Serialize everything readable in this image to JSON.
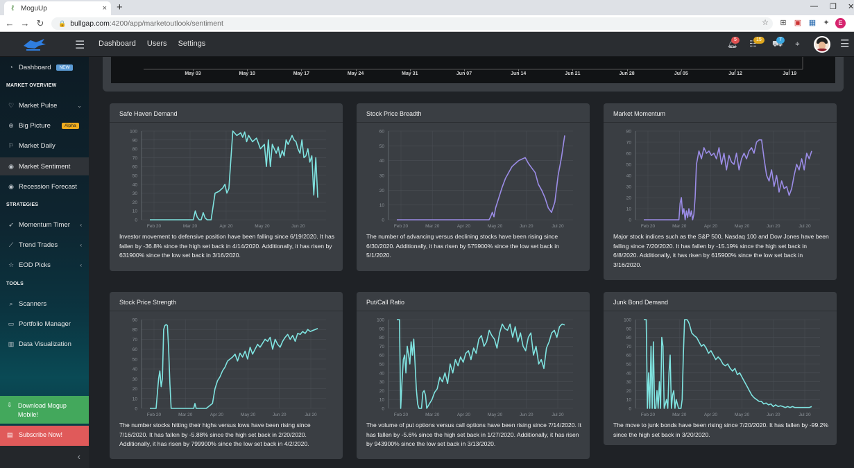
{
  "browser": {
    "tab_title": "MoguUp",
    "tab_close": "×",
    "new_tab": "+",
    "url_host": "bullgap.com",
    "url_path": ":4200/app/marketoutlook/sentiment",
    "profile_letter": "E"
  },
  "header": {
    "nav": [
      "Dashboard",
      "Users",
      "Settings"
    ],
    "badges": {
      "bell": "5",
      "list": "15",
      "cart": "7"
    }
  },
  "sidebar": {
    "items": [
      {
        "label": "Dashboard",
        "icon": "gauge-icon",
        "badge": "NEW",
        "badge_color": "#5b9bd5"
      },
      {
        "label": "Market Pulse",
        "icon": "heart-icon",
        "chevron": "⌄"
      },
      {
        "label": "Big Picture",
        "icon": "crosshair-icon",
        "badge": "Alpha",
        "badge_color": "#f0ad1e"
      },
      {
        "label": "Market Daily",
        "icon": "flag-icon"
      },
      {
        "label": "Market Sentiment",
        "icon": "eye-icon",
        "active": true
      },
      {
        "label": "Recession Forecast",
        "icon": "eye-icon"
      },
      {
        "label": "Momentum Timer",
        "icon": "rocket-icon",
        "chevron": "‹"
      },
      {
        "label": "Trend Trades",
        "icon": "chart-line-icon",
        "chevron": "‹"
      },
      {
        "label": "EOD Picks",
        "icon": "star-icon",
        "chevron": "‹"
      },
      {
        "label": "Scanners",
        "icon": "search-icon"
      },
      {
        "label": "Portfolio Manager",
        "icon": "briefcase-icon"
      },
      {
        "label": "Data Visualization",
        "icon": "bar-chart-icon"
      }
    ],
    "headings": [
      "MARKET OVERVIEW",
      "STRATEGIES",
      "TOOLS"
    ],
    "download": "Download Mogup Mobile!",
    "subscribe": "Subscribe Now!",
    "collapse": "‹"
  },
  "top_chart": {
    "x_labels": [
      "May 03",
      "May 10",
      "May 17",
      "May 24",
      "May 31",
      "Jun 07",
      "Jun 14",
      "Jun 21",
      "Jun 28",
      "Jul 05",
      "Jul 12",
      "Jul 19"
    ]
  },
  "cards": [
    {
      "title": "Safe Haven Demand",
      "description": "Investor movement to defensive position have been falling since 6/19/2020. It has fallen by -36.8% since the high set back in 4/14/2020. Additionally, it has risen by 631900% since the low set back in 3/16/2020."
    },
    {
      "title": "Stock Price Breadth",
      "description": "The number of advancing versus declining stocks have been rising since 6/30/2020. Additionally, it has risen by 575900% since the low set back in 5/1/2020."
    },
    {
      "title": "Market Momentum",
      "description": "Major stock indices such as the S&P 500, Nasdaq 100 and Dow Jones have been falling since 7/20/2020. It has fallen by -15.19% since the high set back in 6/8/2020. Additionally, it has risen by 615900% since the low set back in 3/16/2020."
    },
    {
      "title": "Stock Price Strength",
      "description": "The number stocks hitting their highs versus lows have been rising since 7/16/2020. It has fallen by -5.88% since the high set back in 2/20/2020. Additionally, it has risen by 799900% since the low set back in 4/2/2020."
    },
    {
      "title": "Put/Call Ratio",
      "description": "The volume of put options versus call options have been rising since 7/14/2020. It has fallen by -5.6% since the high set back in 1/27/2020. Additionally, it has risen by 943900% since the low set back in 3/13/2020."
    },
    {
      "title": "Junk Bond Demand",
      "description": "The move to junk bonds have been rising since 7/20/2020. It has fallen by -99.2% since the high set back in 3/20/2020."
    }
  ],
  "chart_data": [
    {
      "type": "line",
      "color": "#7fe3e0",
      "ylim": [
        0,
        100
      ],
      "yticks": [
        0,
        10,
        20,
        30,
        40,
        50,
        60,
        70,
        80,
        90,
        100
      ],
      "xticks": [
        "Feb 20",
        "Mar 20",
        "Apr 20",
        "May 20",
        "Jun 20"
      ],
      "x": [
        0,
        12,
        30,
        36,
        38,
        40,
        42,
        44,
        46,
        48,
        50,
        52,
        54,
        56,
        58,
        60,
        62,
        66,
        70,
        74,
        76,
        78,
        80,
        84,
        88,
        92,
        94,
        96,
        98,
        100,
        104,
        108,
        112,
        116,
        118,
        120,
        122,
        124,
        128,
        130,
        132,
        134,
        136,
        138,
        140,
        144,
        146,
        148,
        150,
        152,
        154,
        156,
        158,
        160,
        162,
        164,
        166,
        168,
        170
      ],
      "y": [
        0,
        0,
        0,
        0,
        0,
        0,
        0,
        0,
        10,
        3,
        0,
        0,
        8,
        2,
        0,
        0,
        0,
        30,
        32,
        36,
        40,
        30,
        35,
        100,
        95,
        98,
        93,
        99,
        88,
        95,
        88,
        92,
        80,
        85,
        60,
        90,
        60,
        85,
        75,
        82,
        70,
        78,
        72,
        90,
        85,
        95,
        90,
        88,
        80,
        75,
        90,
        70,
        72,
        80,
        65,
        72,
        28,
        70,
        25
      ]
    },
    {
      "type": "line",
      "color": "#9b8ce6",
      "ylim": [
        0,
        60
      ],
      "yticks": [
        0,
        10,
        20,
        30,
        40,
        50,
        60
      ],
      "xticks": [
        "Feb 20",
        "Mar 20",
        "Apr 20",
        "May 20",
        "Jun 20",
        "Jul 20"
      ],
      "x": [
        0,
        20,
        40,
        60,
        80,
        100,
        110,
        112,
        114,
        116,
        118,
        120,
        124,
        128,
        132,
        136,
        140,
        144,
        148,
        152,
        156,
        160,
        164,
        168,
        170,
        172,
        176,
        180,
        184,
        188,
        192,
        196,
        200,
        204
      ],
      "y": [
        0,
        0,
        0,
        0,
        0,
        0,
        0,
        0,
        2,
        5,
        2,
        8,
        15,
        22,
        28,
        32,
        36,
        38,
        40,
        41,
        42,
        38,
        35,
        32,
        28,
        24,
        20,
        15,
        8,
        5,
        12,
        30,
        42,
        57
      ]
    },
    {
      "type": "line",
      "color": "#9b8ce6",
      "ylim": [
        0,
        80
      ],
      "yticks": [
        0,
        10,
        20,
        30,
        40,
        50,
        60,
        70,
        80
      ],
      "xticks": [
        "Feb 20",
        "Mar 20",
        "Apr 20",
        "May 20",
        "Jun 20",
        "Jul 20"
      ],
      "x": [
        0,
        20,
        40,
        56,
        58,
        60,
        62,
        64,
        66,
        68,
        70,
        72,
        74,
        76,
        78,
        80,
        82,
        84,
        88,
        92,
        96,
        100,
        104,
        108,
        112,
        116,
        120,
        124,
        128,
        132,
        136,
        140,
        144,
        148,
        152,
        156,
        160,
        164,
        168,
        172,
        176,
        180,
        184,
        188,
        192,
        196,
        200,
        204,
        208,
        212,
        216,
        220,
        224,
        228,
        232,
        236,
        240,
        244,
        248,
        252,
        256,
        260,
        264,
        268
      ],
      "y": [
        0,
        0,
        0,
        0,
        15,
        20,
        5,
        10,
        0,
        8,
        2,
        10,
        3,
        8,
        0,
        5,
        20,
        50,
        62,
        55,
        65,
        60,
        62,
        58,
        60,
        55,
        65,
        50,
        60,
        45,
        58,
        52,
        50,
        60,
        45,
        55,
        60,
        55,
        62,
        65,
        60,
        70,
        72,
        72,
        55,
        40,
        35,
        45,
        30,
        40,
        25,
        35,
        28,
        30,
        22,
        28,
        40,
        50,
        45,
        55,
        45,
        60,
        55,
        62
      ]
    },
    {
      "type": "line",
      "color": "#7fe3e0",
      "ylim": [
        0,
        90
      ],
      "yticks": [
        0,
        10,
        20,
        30,
        40,
        50,
        60,
        70,
        80,
        90
      ],
      "xticks": [
        "Feb 20",
        "Mar 20",
        "Apr 20",
        "May 20",
        "Jun 20",
        "Jul 20"
      ],
      "x": [
        0,
        10,
        14,
        16,
        18,
        20,
        22,
        24,
        26,
        28,
        30,
        32,
        34,
        36,
        40,
        50,
        60,
        70,
        72,
        74,
        80,
        90,
        100,
        104,
        108,
        112,
        116,
        120,
        124,
        128,
        132,
        136,
        140,
        144,
        148,
        152,
        156,
        160,
        164,
        168,
        172,
        176,
        180,
        184,
        188,
        192,
        196,
        200,
        204,
        208,
        212,
        216,
        220,
        224,
        228,
        232,
        236,
        240,
        244,
        248,
        252,
        256,
        260,
        264,
        268
      ],
      "y": [
        0,
        0,
        30,
        38,
        22,
        30,
        80,
        84,
        85,
        84,
        60,
        25,
        0,
        0,
        0,
        0,
        0,
        0,
        5,
        0,
        0,
        0,
        5,
        20,
        28,
        32,
        38,
        42,
        48,
        50,
        52,
        55,
        48,
        56,
        52,
        58,
        50,
        62,
        55,
        60,
        65,
        62,
        66,
        70,
        68,
        72,
        60,
        70,
        65,
        62,
        68,
        72,
        75,
        70,
        74,
        68,
        76,
        75,
        78,
        76,
        80,
        78,
        79,
        80,
        81
      ]
    },
    {
      "type": "line",
      "color": "#7fe3e0",
      "ylim": [
        0,
        100
      ],
      "yticks": [
        0,
        10,
        20,
        30,
        40,
        50,
        60,
        70,
        80,
        90,
        100
      ],
      "xticks": [
        "Feb 20",
        "Mar 20",
        "Apr 20",
        "May 20",
        "Jun 20",
        "Jul 20"
      ],
      "x": [
        0,
        4,
        6,
        8,
        10,
        12,
        14,
        16,
        18,
        20,
        22,
        24,
        26,
        28,
        30,
        32,
        34,
        36,
        38,
        40,
        42,
        44,
        46,
        50,
        54,
        58,
        62,
        66,
        70,
        74,
        78,
        82,
        86,
        90,
        94,
        98,
        102,
        106,
        110,
        114,
        118,
        122,
        126,
        130,
        134,
        138,
        142,
        146,
        150,
        154,
        158,
        162,
        166,
        170,
        174,
        178,
        182,
        186,
        190,
        194,
        198,
        202,
        206,
        210,
        214,
        218,
        222,
        226,
        230,
        234,
        238,
        242,
        246,
        250,
        254,
        258
      ],
      "y": [
        100,
        100,
        0,
        30,
        55,
        60,
        40,
        70,
        60,
        50,
        75,
        60,
        78,
        50,
        22,
        5,
        0,
        0,
        0,
        18,
        20,
        15,
        0,
        5,
        10,
        18,
        22,
        35,
        30,
        40,
        28,
        50,
        40,
        55,
        48,
        58,
        52,
        62,
        65,
        55,
        68,
        62,
        78,
        82,
        70,
        75,
        88,
        82,
        78,
        68,
        85,
        95,
        90,
        88,
        95,
        80,
        92,
        75,
        85,
        70,
        65,
        80,
        85,
        60,
        70,
        50,
        55,
        45,
        68,
        75,
        85,
        88,
        80,
        92,
        95,
        94
      ]
    },
    {
      "type": "line",
      "color": "#7fe3e0",
      "ylim": [
        0,
        100
      ],
      "yticks": [
        0,
        10,
        20,
        30,
        40,
        50,
        60,
        70,
        80,
        90,
        100
      ],
      "xticks": [
        "Feb 20",
        "Mar 20",
        "Apr 20",
        "May 20",
        "Jun 20",
        "Jul 20"
      ],
      "x": [
        0,
        4,
        6,
        8,
        10,
        12,
        14,
        16,
        18,
        20,
        22,
        24,
        26,
        28,
        30,
        32,
        34,
        36,
        38,
        40,
        42,
        44,
        46,
        48,
        50,
        52,
        54,
        56,
        58,
        60,
        62,
        64,
        66,
        68,
        70,
        72,
        74,
        76,
        78,
        80,
        84,
        88,
        92,
        96,
        100,
        104,
        108,
        112,
        116,
        120,
        124,
        128,
        132,
        136,
        140,
        144,
        148,
        152,
        156,
        160,
        164,
        168,
        172,
        176,
        180,
        184,
        188,
        192,
        196,
        200,
        204,
        208,
        212,
        216,
        220,
        224,
        228,
        232,
        236,
        240,
        244,
        248,
        252,
        256,
        260,
        264,
        268,
        272,
        276,
        280
      ],
      "y": [
        100,
        100,
        0,
        40,
        0,
        70,
        0,
        75,
        0,
        0,
        20,
        0,
        30,
        0,
        80,
        70,
        0,
        5,
        10,
        0,
        40,
        60,
        0,
        15,
        20,
        0,
        10,
        5,
        0,
        0,
        0,
        10,
        60,
        100,
        100,
        100,
        98,
        95,
        90,
        85,
        82,
        80,
        75,
        70,
        72,
        68,
        62,
        65,
        60,
        55,
        58,
        55,
        50,
        48,
        50,
        45,
        42,
        45,
        38,
        40,
        35,
        30,
        25,
        20,
        15,
        12,
        10,
        8,
        8,
        5,
        6,
        4,
        5,
        2,
        4,
        2,
        3,
        2,
        1,
        2,
        1,
        2,
        1,
        1,
        1,
        1,
        1,
        1,
        1,
        2
      ]
    }
  ]
}
